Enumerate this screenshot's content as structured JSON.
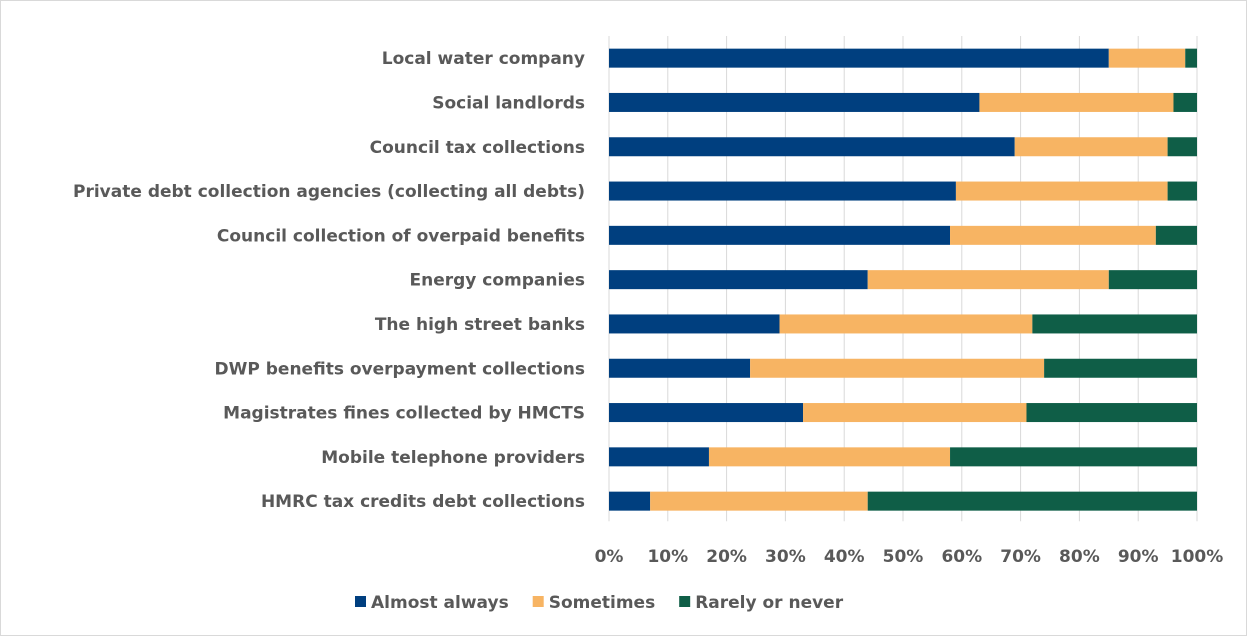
{
  "chart_data": {
    "type": "bar",
    "orientation": "horizontal",
    "stacked": "percent",
    "categories": [
      "Local water company",
      "Social landlords",
      "Council tax collections",
      "Private debt collection agencies (collecting all debts)",
      "Council collection of overpaid benefits",
      "Energy companies",
      "The high street banks",
      "DWP benefits overpayment collections",
      "Magistrates fines collected by HMCTS",
      "Mobile telephone providers",
      "HMRC tax credits debt collections"
    ],
    "series": [
      {
        "name": "Almost always",
        "color": "#003f7f",
        "values": [
          85,
          63,
          69,
          59,
          58,
          44,
          29,
          24,
          33,
          17,
          7
        ]
      },
      {
        "name": "Sometimes",
        "color": "#f7b463",
        "values": [
          13,
          33,
          26,
          36,
          35,
          41,
          43,
          50,
          38,
          41,
          37
        ]
      },
      {
        "name": "Rarely or never",
        "color": "#0f5e47",
        "values": [
          2,
          4,
          5,
          5,
          7,
          15,
          28,
          26,
          29,
          42,
          56
        ]
      }
    ],
    "xlim": [
      0,
      100
    ],
    "x_ticks": [
      "0%",
      "10%",
      "20%",
      "30%",
      "40%",
      "50%",
      "60%",
      "70%",
      "80%",
      "90%",
      "100%"
    ],
    "grid": true,
    "legend_position": "bottom",
    "title": "",
    "xlabel": "",
    "ylabel": ""
  }
}
